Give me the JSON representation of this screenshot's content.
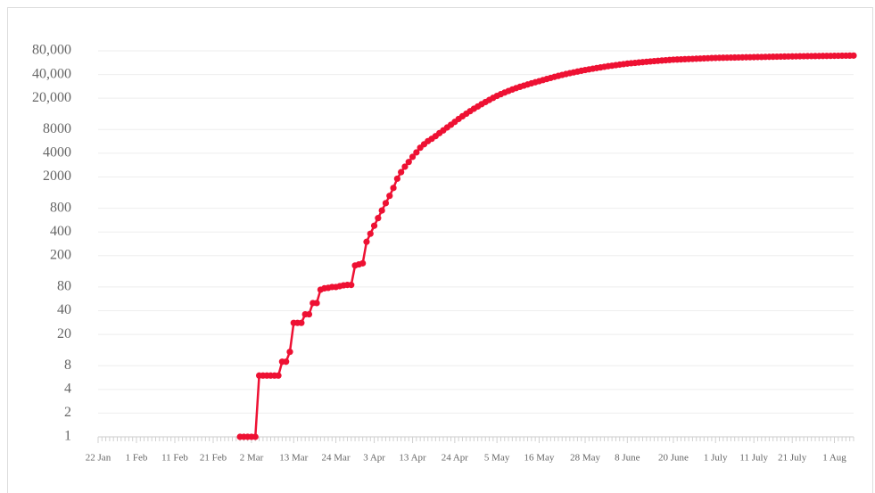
{
  "chart_data": {
    "type": "line",
    "log_scale": true,
    "grid": true,
    "color": "#ee1133",
    "ylim": [
      1,
      80000
    ],
    "yticks": [
      1,
      2,
      4,
      8,
      20,
      40,
      80,
      200,
      400,
      800,
      2000,
      4000,
      8000,
      {
        "value": 20000,
        "label": "20,000"
      },
      {
        "value": 40000,
        "label": "40,000"
      },
      {
        "value": 80000,
        "label": "80,000"
      }
    ],
    "categories": [
      "22 Jan",
      null,
      null,
      null,
      null,
      null,
      null,
      null,
      null,
      null,
      "1 Feb",
      null,
      null,
      null,
      null,
      null,
      null,
      null,
      null,
      null,
      "11 Feb",
      null,
      null,
      null,
      null,
      null,
      null,
      null,
      null,
      null,
      "21 Feb",
      null,
      null,
      null,
      null,
      null,
      null,
      null,
      null,
      null,
      "2 Mar",
      null,
      null,
      null,
      null,
      null,
      null,
      null,
      null,
      null,
      null,
      "13 Mar",
      null,
      null,
      null,
      null,
      null,
      null,
      null,
      null,
      null,
      null,
      "24 Mar",
      null,
      null,
      null,
      null,
      null,
      null,
      null,
      null,
      null,
      "3 Apr",
      null,
      null,
      null,
      null,
      null,
      null,
      null,
      null,
      null,
      "13 Apr",
      null,
      null,
      null,
      null,
      null,
      null,
      null,
      null,
      null,
      null,
      "24 Apr",
      null,
      null,
      null,
      null,
      null,
      null,
      null,
      null,
      null,
      null,
      "5 May",
      null,
      null,
      null,
      null,
      null,
      null,
      null,
      null,
      null,
      null,
      "16 May",
      null,
      null,
      null,
      null,
      null,
      null,
      null,
      null,
      null,
      null,
      null,
      "28 May",
      null,
      null,
      null,
      null,
      null,
      null,
      null,
      null,
      null,
      null,
      "8 June",
      null,
      null,
      null,
      null,
      null,
      null,
      null,
      null,
      null,
      null,
      null,
      "20 June",
      null,
      null,
      null,
      null,
      null,
      null,
      null,
      null,
      null,
      null,
      "1 July",
      null,
      null,
      null,
      null,
      null,
      null,
      null,
      null,
      null,
      "11 July",
      null,
      null,
      null,
      null,
      null,
      null,
      null,
      null,
      null,
      "21 July",
      null,
      null,
      null,
      null,
      null,
      null,
      null,
      null,
      null,
      null,
      "1 Aug",
      null,
      null,
      null,
      null,
      null
    ],
    "values": [
      null,
      null,
      null,
      null,
      null,
      null,
      null,
      null,
      null,
      null,
      null,
      null,
      null,
      null,
      null,
      null,
      null,
      null,
      null,
      null,
      null,
      null,
      null,
      null,
      null,
      null,
      null,
      null,
      null,
      null,
      null,
      null,
      null,
      null,
      null,
      null,
      null,
      1,
      1,
      1,
      1,
      1,
      6,
      6,
      6,
      6,
      6,
      6,
      9,
      9,
      12,
      28,
      28,
      28,
      36,
      36,
      50,
      50,
      74,
      77,
      78,
      80,
      80,
      82,
      84,
      85,
      85,
      150,
      155,
      160,
      300,
      380,
      480,
      600,
      750,
      930,
      1150,
      1450,
      1900,
      2300,
      2700,
      3100,
      3600,
      4100,
      4700,
      5200,
      5700,
      6100,
      6600,
      7200,
      7800,
      8500,
      9200,
      10000,
      10900,
      11800,
      12700,
      13700,
      14700,
      15700,
      16800,
      17900,
      19000,
      20200,
      21400,
      22500,
      23600,
      24700,
      25800,
      26900,
      27900,
      28900,
      29900,
      30900,
      31900,
      32900,
      34000,
      35100,
      36200,
      37300,
      38400,
      39500,
      40600,
      41600,
      42600,
      43600,
      44600,
      45600,
      46500,
      47400,
      48300,
      49200,
      50100,
      51000,
      51800,
      52600,
      53400,
      54200,
      55000,
      55600,
      56200,
      56800,
      57400,
      58000,
      58600,
      59200,
      59700,
      60200,
      60700,
      61200,
      61700,
      62000,
      62300,
      62600,
      62900,
      63200,
      63500,
      63800,
      64100,
      64400,
      64700,
      65000,
      65150,
      65300,
      65450,
      65600,
      65750,
      65900,
      66050,
      66200,
      66350,
      66500,
      66650,
      66800,
      66950,
      67100,
      67250,
      67400,
      67550,
      67700,
      67850,
      68000,
      68100,
      68200,
      68300,
      68400,
      68500,
      68600,
      68700,
      68800,
      68900,
      69000,
      69100,
      69200,
      69300,
      69400,
      69500,
      69600
    ]
  }
}
